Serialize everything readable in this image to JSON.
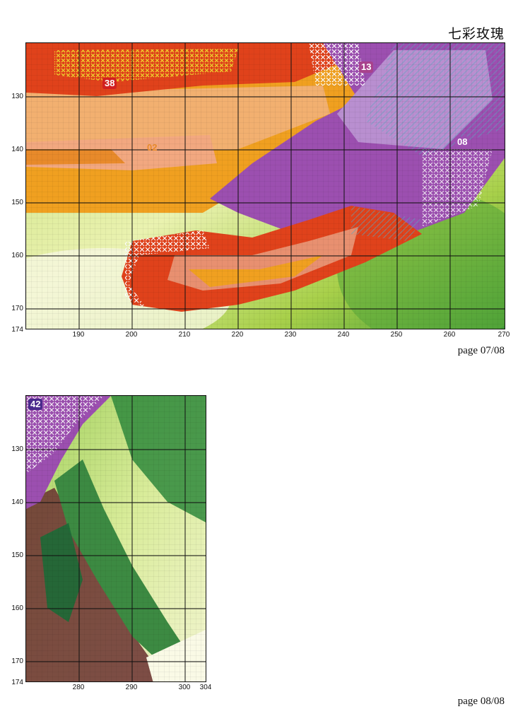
{
  "title": "七彩玫瑰",
  "page1": {
    "label": "page 07/08",
    "y_ticks": [
      "130",
      "140",
      "150",
      "160",
      "170",
      "174"
    ],
    "x_ticks": [
      "190",
      "200",
      "210",
      "220",
      "230",
      "240",
      "250",
      "260",
      "270"
    ],
    "color_codes": [
      {
        "code": "38",
        "color": "#d12020"
      },
      {
        "code": "13",
        "color": "#a8428c"
      },
      {
        "code": "02",
        "color": "#e88a2a"
      },
      {
        "code": "08",
        "color": "#9c4fb0"
      }
    ]
  },
  "page2": {
    "label": "page 08/08",
    "y_ticks": [
      "130",
      "140",
      "150",
      "160",
      "170",
      "174"
    ],
    "x_ticks": [
      "280",
      "290",
      "300",
      "304"
    ],
    "color_codes": [
      {
        "code": "42",
        "color": "#4a2a8c"
      }
    ]
  },
  "palette": {
    "red": "#e0421b",
    "orange": "#f0a020",
    "peach": "#f2b070",
    "purple": "#9c4fb0",
    "lilac": "#b98fd0",
    "leaf_light": "#d8e88a",
    "leaf_mid": "#8fc43a",
    "leaf_dark": "#2f8f3a"
  }
}
